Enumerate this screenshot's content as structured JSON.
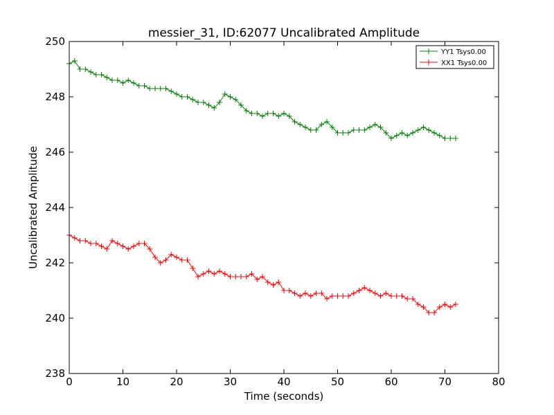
{
  "chart_data": {
    "type": "line",
    "title": "messier_31, ID:62077 Uncalibrated Amplitude",
    "xlabel": "Time (seconds)",
    "ylabel": "Uncalibrated Amplitude",
    "xlim": [
      0,
      80
    ],
    "ylim": [
      238,
      250
    ],
    "xticks": [
      "0",
      "10",
      "20",
      "30",
      "40",
      "50",
      "60",
      "70",
      "80"
    ],
    "yticks": [
      "238",
      "240",
      "242",
      "244",
      "246",
      "248",
      "250"
    ],
    "grid": false,
    "legend_position": "top-right",
    "marker": "+",
    "series": [
      {
        "name": "YY1 Tsys0.00",
        "color": "#008000",
        "x": [
          0,
          1,
          2,
          3,
          4,
          5,
          6,
          7,
          8,
          9,
          10,
          11,
          12,
          13,
          14,
          15,
          16,
          17,
          18,
          19,
          20,
          21,
          22,
          23,
          24,
          25,
          26,
          27,
          28,
          29,
          30,
          31,
          32,
          33,
          34,
          35,
          36,
          37,
          38,
          39,
          40,
          41,
          42,
          43,
          44,
          45,
          46,
          47,
          48,
          49,
          50,
          51,
          52,
          53,
          54,
          55,
          56,
          57,
          58,
          59,
          60,
          61,
          62,
          63,
          64,
          65,
          66,
          67,
          68,
          69,
          70,
          71,
          72
        ],
        "y": [
          249.2,
          249.3,
          249.0,
          249.0,
          248.9,
          248.8,
          248.8,
          248.7,
          248.6,
          248.6,
          248.5,
          248.6,
          248.5,
          248.4,
          248.4,
          248.3,
          248.3,
          248.3,
          248.3,
          248.2,
          248.1,
          248.0,
          248.0,
          247.9,
          247.8,
          247.8,
          247.7,
          247.6,
          247.8,
          248.1,
          248.0,
          247.9,
          247.7,
          247.5,
          247.4,
          247.4,
          247.3,
          247.4,
          247.4,
          247.3,
          247.4,
          247.3,
          247.1,
          247.0,
          246.9,
          246.8,
          246.8,
          247.0,
          247.1,
          246.9,
          246.7,
          246.7,
          246.7,
          246.8,
          246.8,
          246.8,
          246.9,
          247.0,
          246.9,
          246.7,
          246.5,
          246.6,
          246.7,
          246.6,
          246.7,
          246.8,
          246.9,
          246.8,
          246.7,
          246.6,
          246.5,
          246.5,
          246.5
        ]
      },
      {
        "name": "XX1 Tsys0.00",
        "color": "#ff0000",
        "x": [
          0,
          1,
          2,
          3,
          4,
          5,
          6,
          7,
          8,
          9,
          10,
          11,
          12,
          13,
          14,
          15,
          16,
          17,
          18,
          19,
          20,
          21,
          22,
          23,
          24,
          25,
          26,
          27,
          28,
          29,
          30,
          31,
          32,
          33,
          34,
          35,
          36,
          37,
          38,
          39,
          40,
          41,
          42,
          43,
          44,
          45,
          46,
          47,
          48,
          49,
          50,
          51,
          52,
          53,
          54,
          55,
          56,
          57,
          58,
          59,
          60,
          61,
          62,
          63,
          64,
          65,
          66,
          67,
          68,
          69,
          70,
          71,
          72
        ],
        "y": [
          243.0,
          242.9,
          242.8,
          242.8,
          242.7,
          242.7,
          242.6,
          242.5,
          242.8,
          242.7,
          242.6,
          242.5,
          242.6,
          242.7,
          242.7,
          242.5,
          242.2,
          242.0,
          242.1,
          242.3,
          242.2,
          242.1,
          242.1,
          241.8,
          241.5,
          241.6,
          241.7,
          241.6,
          241.7,
          241.6,
          241.5,
          241.5,
          241.5,
          241.5,
          241.6,
          241.4,
          241.5,
          241.3,
          241.2,
          241.3,
          241.0,
          241.0,
          240.9,
          240.8,
          240.9,
          240.8,
          240.9,
          240.9,
          240.7,
          240.8,
          240.8,
          240.8,
          240.8,
          240.9,
          241.0,
          241.1,
          241.0,
          240.9,
          240.8,
          240.9,
          240.8,
          240.8,
          240.8,
          240.7,
          240.7,
          240.5,
          240.4,
          240.2,
          240.2,
          240.4,
          240.5,
          240.4,
          240.5
        ]
      }
    ]
  }
}
